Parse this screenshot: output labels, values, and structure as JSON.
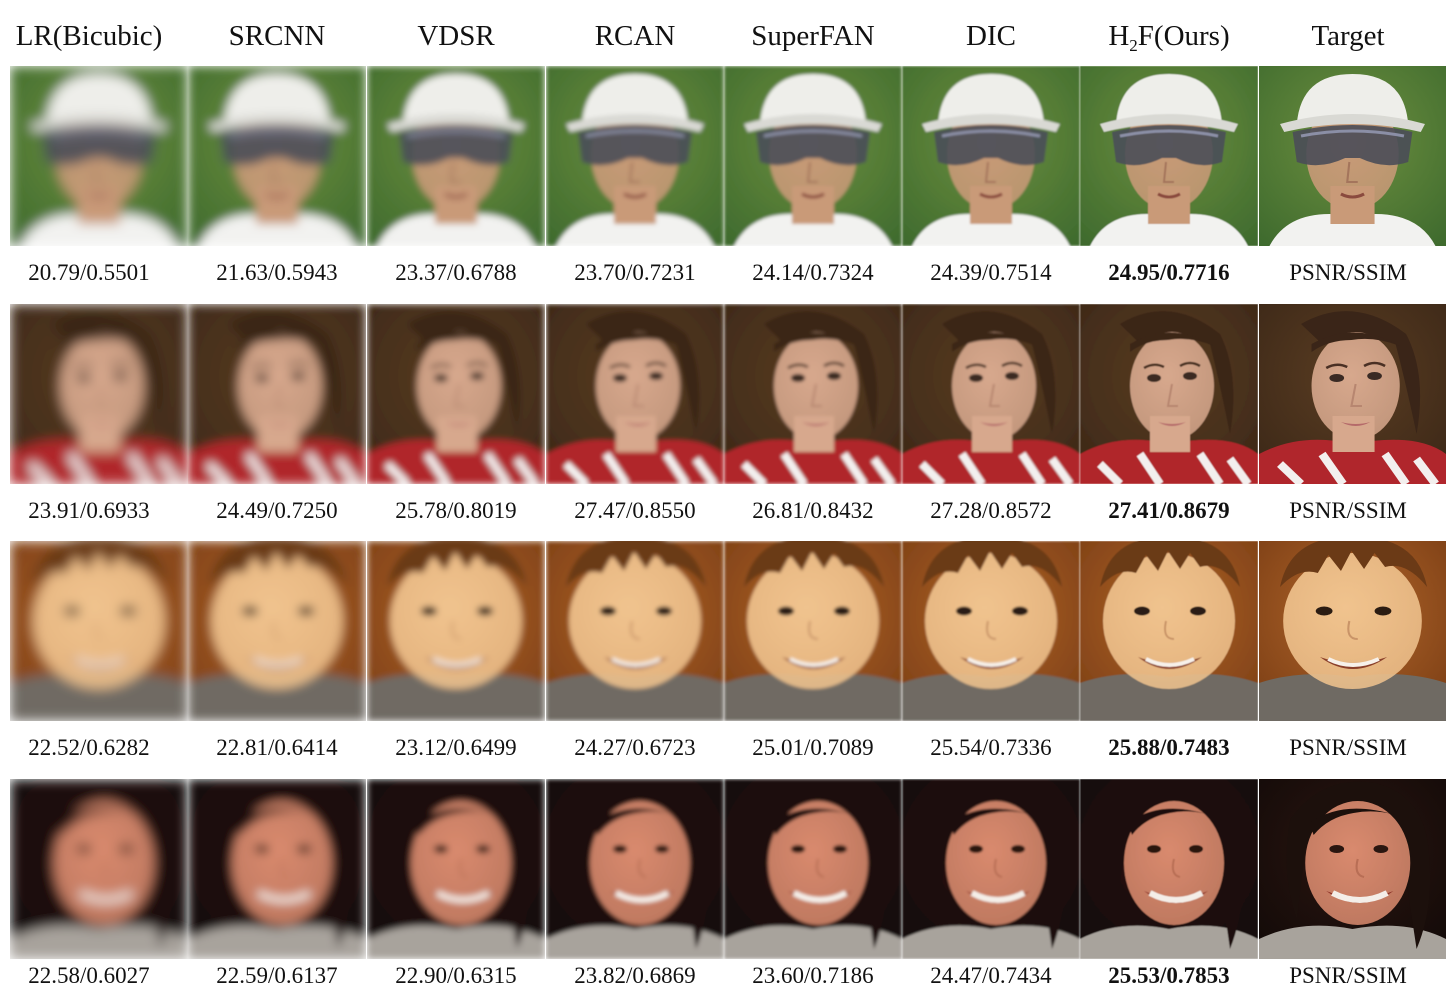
{
  "columns": [
    {
      "label": "LR(Bicubic)"
    },
    {
      "label": "SRCNN"
    },
    {
      "label": "VDSR"
    },
    {
      "label": "RCAN"
    },
    {
      "label": "SuperFAN"
    },
    {
      "label": "DIC"
    },
    {
      "label_main": "H",
      "label_sub": "2",
      "label_rest": "F(Ours)"
    },
    {
      "label": "Target"
    }
  ],
  "rows": [
    {
      "subject": "man-with-cap-sunglasses",
      "colors": {
        "bg": "#3f6b2e",
        "bg2": "#6d8f3f",
        "skin": "#c99a78",
        "hair": "#eeeeea",
        "shirt": "#f2f2f0",
        "accent": "#4a4c58"
      },
      "scores": [
        "20.79/0.5501",
        "21.63/0.5943",
        "23.37/0.6788",
        "23.70/0.7231",
        "24.14/0.7324",
        "24.39/0.7514",
        "24.95/0.7716",
        "PSNR/SSIM"
      ]
    },
    {
      "subject": "woman-dark-hair",
      "colors": {
        "bg": "#3b2717",
        "bg2": "#5a3d22",
        "skin": "#d7a88d",
        "hair": "#3a2518",
        "shirt": "#b0262c",
        "accent": "#f3efee"
      },
      "scores": [
        "23.91/0.6933",
        "24.49/0.7250",
        "25.78/0.8019",
        "27.47/0.8550",
        "26.81/0.8432",
        "27.28/0.8572",
        "27.41/0.8679",
        "PSNR/SSIM"
      ]
    },
    {
      "subject": "smiling-child",
      "colors": {
        "bg": "#7a3d14",
        "bg2": "#b0652a",
        "skin": "#f0c38e",
        "hair": "#6b3a16",
        "shirt": "#6f6a63",
        "accent": "#2b1c12"
      },
      "scores": [
        "22.52/0.6282",
        "22.81/0.6414",
        "23.12/0.6499",
        "24.27/0.6723",
        "25.01/0.7089",
        "25.54/0.7336",
        "25.88/0.7483",
        "PSNR/SSIM"
      ]
    },
    {
      "subject": "smiling-woman-dark-bg",
      "colors": {
        "bg": "#120a08",
        "bg2": "#2a1510",
        "skin": "#d98a6e",
        "hair": "#1c100c",
        "shirt": "#a8a39c",
        "accent": "#f4eee8"
      },
      "scores": [
        "22.58/0.6027",
        "22.59/0.6137",
        "22.90/0.6315",
        "23.82/0.6869",
        "23.60/0.7186",
        "24.47/0.7434",
        "25.53/0.7853",
        "PSNR/SSIM"
      ]
    }
  ]
}
